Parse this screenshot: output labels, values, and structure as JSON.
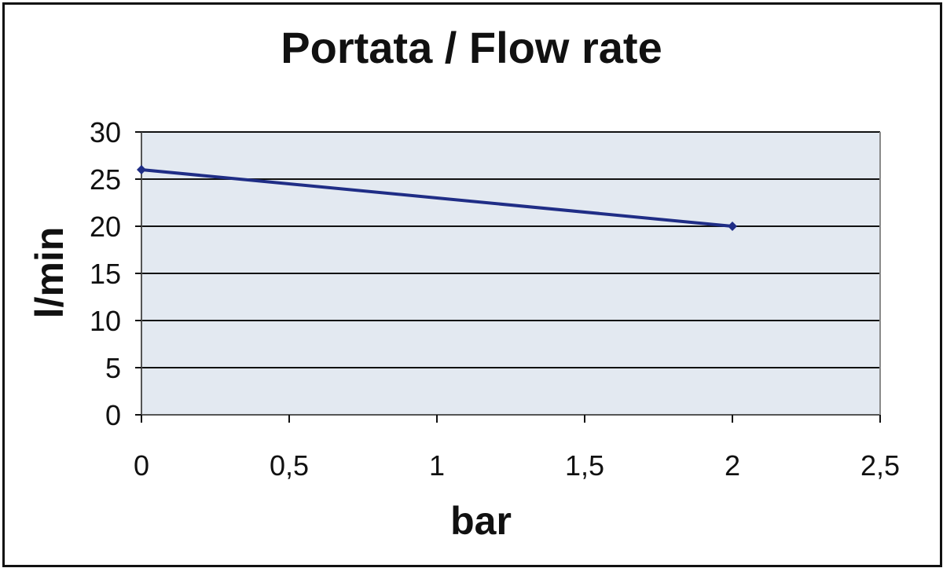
{
  "chart_data": {
    "type": "line",
    "title": "Portata / Flow rate",
    "xlabel": "bar",
    "ylabel": "l/min",
    "xlim": [
      0,
      2.5
    ],
    "ylim": [
      0,
      30
    ],
    "x_ticks": [
      "0",
      "0,5",
      "1",
      "1,5",
      "2",
      "2,5"
    ],
    "y_ticks": [
      "0",
      "5",
      "10",
      "15",
      "20",
      "25",
      "30"
    ],
    "x": [
      0,
      2
    ],
    "y": [
      26,
      20
    ],
    "grid": true,
    "colors": {
      "line": "#1f2d86",
      "plot_background": "#e3e9f1",
      "grid": "#111111"
    }
  }
}
